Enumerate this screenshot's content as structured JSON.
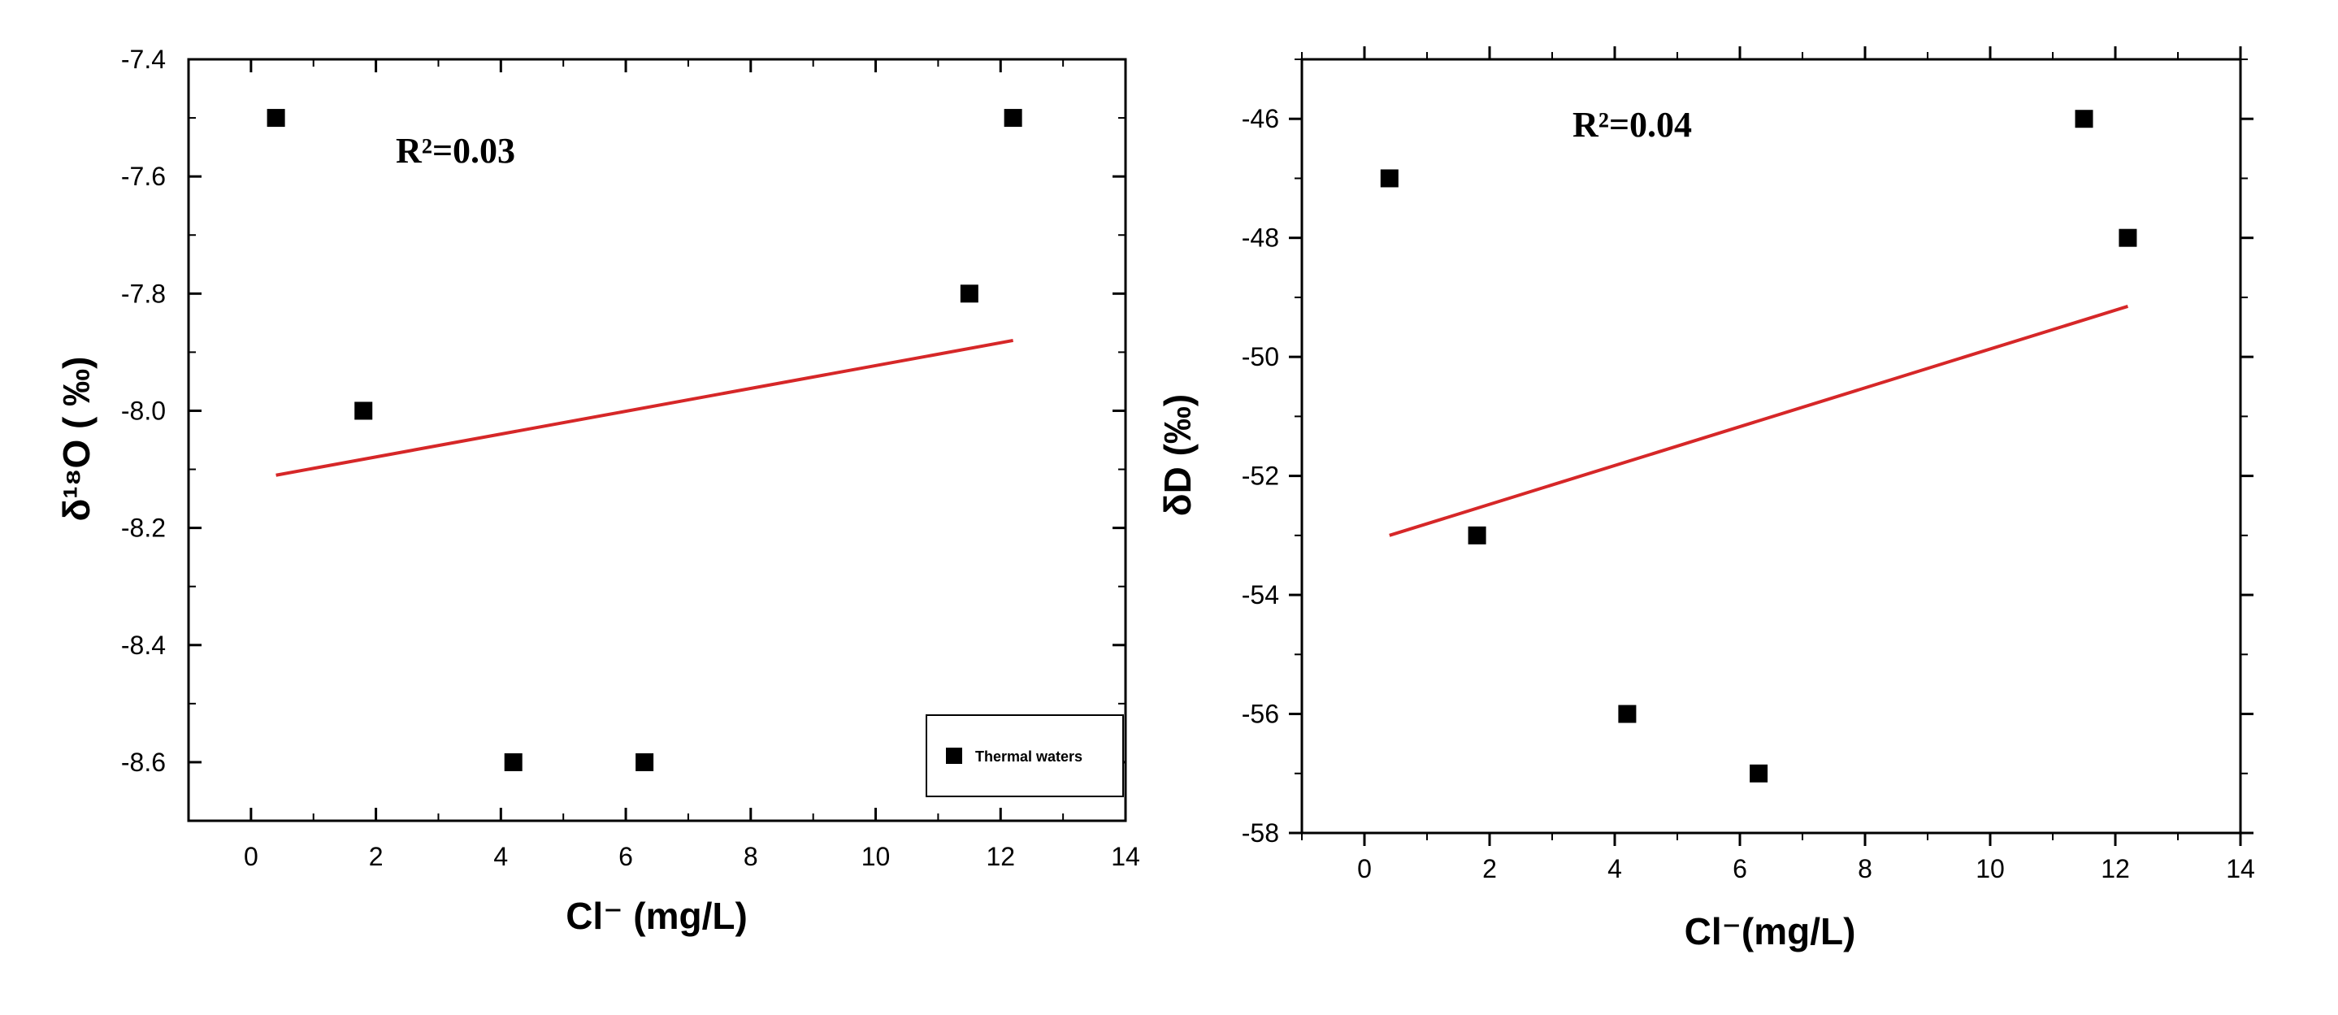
{
  "chart_data": [
    {
      "type": "scatter",
      "xlabel": "Cl⁻ (mg/L)",
      "ylabel": "δ¹⁸O ( ‰)",
      "xlim": [
        -1,
        14
      ],
      "ylim": [
        -8.7,
        -7.4
      ],
      "xticks": [
        0,
        2,
        4,
        6,
        8,
        10,
        12,
        14
      ],
      "yticks": [
        -8.6,
        -8.4,
        -8.2,
        -8.0,
        -7.8,
        -7.6,
        -7.4
      ],
      "xtick_labels": [
        "0",
        "2",
        "4",
        "6",
        "8",
        "10",
        "12",
        "14"
      ],
      "ytick_labels": [
        "-8.6",
        "-8.4",
        "-8.2",
        "-8.0",
        "-7.8",
        "-7.6",
        "-7.4"
      ],
      "grid": false,
      "annotation": "R²=0.03",
      "legend": {
        "placement": "bottom-right",
        "entries": [
          "Thermal waters"
        ]
      },
      "series": [
        {
          "name": "Thermal waters",
          "color": "#000000",
          "marker": "square",
          "points": [
            {
              "x": 0.4,
              "y": -7.5
            },
            {
              "x": 1.8,
              "y": -8.0
            },
            {
              "x": 4.2,
              "y": -8.6
            },
            {
              "x": 6.3,
              "y": -8.6
            },
            {
              "x": 11.5,
              "y": -7.8
            },
            {
              "x": 12.2,
              "y": -7.5
            }
          ]
        }
      ],
      "fit_line": {
        "color": "#d62728",
        "points": [
          {
            "x": 0.4,
            "y": -8.11
          },
          {
            "x": 12.2,
            "y": -7.88
          }
        ]
      }
    },
    {
      "type": "scatter",
      "xlabel": "Cl⁻(mg/L)",
      "ylabel": "δD (‰)",
      "xlim": [
        -1,
        14
      ],
      "ylim": [
        -58,
        -45
      ],
      "xticks": [
        0,
        2,
        4,
        6,
        8,
        10,
        12,
        14
      ],
      "yticks": [
        -58,
        -56,
        -54,
        -52,
        -50,
        -48,
        -46
      ],
      "xtick_labels": [
        "0",
        "2",
        "4",
        "6",
        "8",
        "10",
        "12",
        "14"
      ],
      "ytick_labels": [
        "-58",
        "-56",
        "-54",
        "-52",
        "-50",
        "-48",
        "-46"
      ],
      "grid": false,
      "annotation": "R²=0.04",
      "series": [
        {
          "color": "#000000",
          "marker": "square",
          "points": [
            {
              "x": 0.4,
              "y": -47
            },
            {
              "x": 1.8,
              "y": -53
            },
            {
              "x": 4.2,
              "y": -56
            },
            {
              "x": 6.3,
              "y": -57
            },
            {
              "x": 11.5,
              "y": -46
            },
            {
              "x": 12.2,
              "y": -48
            }
          ]
        }
      ],
      "fit_line": {
        "color": "#d62728",
        "points": [
          {
            "x": 0.4,
            "y": -53.0
          },
          {
            "x": 12.2,
            "y": -49.15
          }
        ]
      }
    }
  ]
}
